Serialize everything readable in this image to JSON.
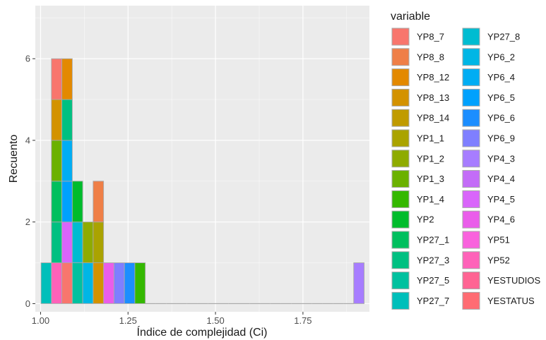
{
  "chart_data": {
    "type": "bar",
    "subtype": "stacked-histogram",
    "xlabel": "Índice de complejidad (Ci)",
    "ylabel": "Recuento",
    "xlim": [
      0.985,
      1.94
    ],
    "ylim": [
      -0.2,
      7.3
    ],
    "x_ticks": [
      1.0,
      1.25,
      1.5,
      1.75
    ],
    "x_tick_labels": [
      "1.00",
      "1.25",
      "1.50",
      "1.75"
    ],
    "y_ticks": [
      0,
      2,
      4,
      6
    ],
    "y_tick_labels": [
      "0",
      "2",
      "4",
      "6"
    ],
    "grid": true,
    "bin_width": 0.0298,
    "bins": [
      {
        "x": 1.0162,
        "stack": [
          "YP27_7"
        ]
      },
      {
        "x": 1.046,
        "stack": [
          "YP52",
          "YP27_3",
          "YP27_1",
          "YP1_3",
          "YP8_13",
          "YP8_7"
        ]
      },
      {
        "x": 1.0758,
        "stack": [
          "YP8_7",
          "YP4_5",
          "YP6_5",
          "YP6_4",
          "YP27_3",
          "YP8_12"
        ]
      },
      {
        "x": 1.1056,
        "stack": [
          "YP27_5",
          "YP27_8",
          "YP2"
        ]
      },
      {
        "x": 1.1354,
        "stack": [
          "YP6_2",
          "YP1_2"
        ]
      },
      {
        "x": 1.1652,
        "stack": [
          "YP8_13",
          "YP1_1",
          "YP8_8"
        ]
      },
      {
        "x": 1.195,
        "stack": [
          "YP4_6"
        ]
      },
      {
        "x": 1.2248,
        "stack": [
          "YP6_9"
        ]
      },
      {
        "x": 1.2546,
        "stack": [
          "YP6_6"
        ]
      },
      {
        "x": 1.2844,
        "stack": [
          "YP1_4"
        ]
      },
      {
        "x": 1.91,
        "stack": [
          "YP4_3"
        ]
      }
    ],
    "legend": {
      "title": "variable",
      "placement": "right",
      "columns": 2,
      "entries": [
        {
          "name": "YP8_7",
          "color": "#F8766D"
        },
        {
          "name": "YP8_8",
          "color": "#EF7F47"
        },
        {
          "name": "YP8_12",
          "color": "#E38900"
        },
        {
          "name": "YP8_13",
          "color": "#D39200"
        },
        {
          "name": "YP8_14",
          "color": "#C09B00"
        },
        {
          "name": "YP1_1",
          "color": "#AAA300"
        },
        {
          "name": "YP1_2",
          "color": "#8EAB00"
        },
        {
          "name": "YP1_3",
          "color": "#6BB100"
        },
        {
          "name": "YP1_4",
          "color": "#34B800"
        },
        {
          "name": "YP2",
          "color": "#00BC2C"
        },
        {
          "name": "YP27_1",
          "color": "#00BF5E"
        },
        {
          "name": "YP27_3",
          "color": "#00C081"
        },
        {
          "name": "YP27_5",
          "color": "#00C19F"
        },
        {
          "name": "YP27_7",
          "color": "#00BFBA"
        },
        {
          "name": "YP27_8",
          "color": "#00BCD1"
        },
        {
          "name": "YP6_2",
          "color": "#00B6E5"
        },
        {
          "name": "YP6_4",
          "color": "#00ADF3"
        },
        {
          "name": "YP6_5",
          "color": "#00A1FD"
        },
        {
          "name": "YP6_6",
          "color": "#1C8EFF"
        },
        {
          "name": "YP6_9",
          "color": "#7F7FFF"
        },
        {
          "name": "YP4_3",
          "color": "#A77DFF"
        },
        {
          "name": "YP4_4",
          "color": "#C36CF7"
        },
        {
          "name": "YP4_5",
          "color": "#D965FA"
        },
        {
          "name": "YP4_6",
          "color": "#EA5DEA"
        },
        {
          "name": "YP51",
          "color": "#F962DD"
        },
        {
          "name": "YP52",
          "color": "#FE62B9"
        },
        {
          "name": "YESTUDIOS",
          "color": "#FF6493"
        },
        {
          "name": "YESTATUS",
          "color": "#FF6C73"
        }
      ]
    }
  },
  "colors": {
    "panel_background": "#EBEBEB",
    "grid_major": "#FFFFFF",
    "bar_outline": "#A9A9A9"
  }
}
